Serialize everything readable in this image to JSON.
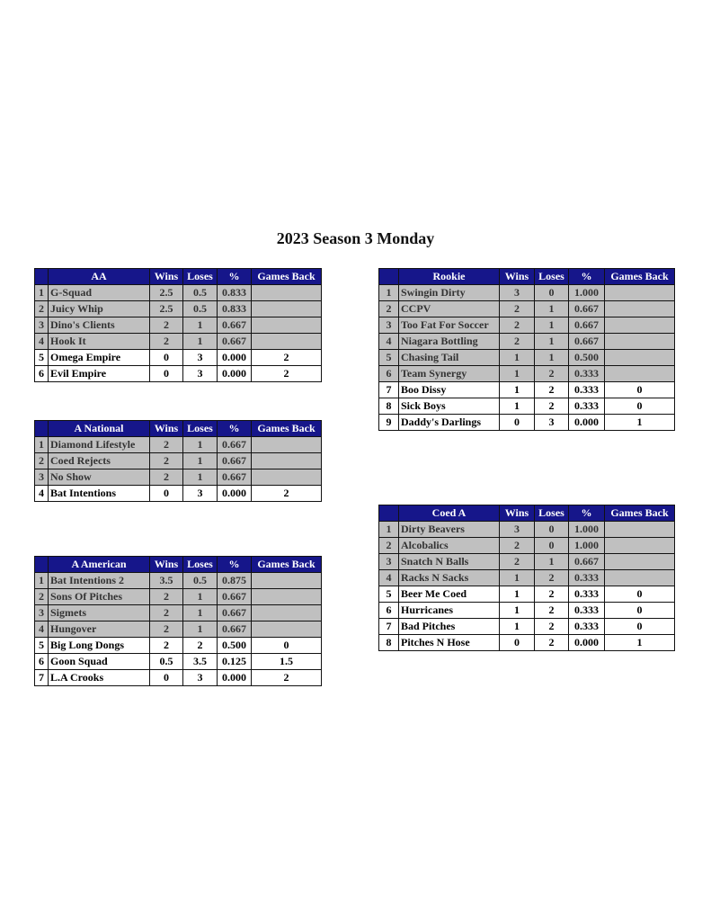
{
  "title": "2023 Season 3 Monday",
  "colors": {
    "header_bg": "#16168a",
    "top_row_bg": "#c0c0c0"
  },
  "columns": [
    "Wins",
    "Loses",
    "%",
    "Games Back"
  ],
  "tables": [
    {
      "name": "AA",
      "rows": [
        [
          "1",
          "G-Squad",
          "2.5",
          "0.5",
          "0.833",
          ""
        ],
        [
          "2",
          "Juicy Whip",
          "2.5",
          "0.5",
          "0.833",
          ""
        ],
        [
          "3",
          "Dino's Clients",
          "2",
          "1",
          "0.667",
          ""
        ],
        [
          "4",
          "Hook It",
          "2",
          "1",
          "0.667",
          ""
        ],
        [
          "5",
          "Omega Empire",
          "0",
          "3",
          "0.000",
          "2"
        ],
        [
          "6",
          "Evil Empire",
          "0",
          "3",
          "0.000",
          "2"
        ]
      ],
      "top": 4
    },
    {
      "name": "A National",
      "rows": [
        [
          "1",
          "Diamond Lifestyle",
          "2",
          "1",
          "0.667",
          ""
        ],
        [
          "2",
          "Coed Rejects",
          "2",
          "1",
          "0.667",
          ""
        ],
        [
          "3",
          "No Show",
          "2",
          "1",
          "0.667",
          ""
        ],
        [
          "4",
          "Bat Intentions",
          "0",
          "3",
          "0.000",
          "2"
        ]
      ],
      "top": 3
    },
    {
      "name": "A American",
      "rows": [
        [
          "1",
          "Bat Intentions 2",
          "3.5",
          "0.5",
          "0.875",
          ""
        ],
        [
          "2",
          "Sons Of Pitches",
          "2",
          "1",
          "0.667",
          ""
        ],
        [
          "3",
          "Sigmets",
          "2",
          "1",
          "0.667",
          ""
        ],
        [
          "4",
          "Hungover",
          "2",
          "1",
          "0.667",
          ""
        ],
        [
          "5",
          "Big Long Dongs",
          "2",
          "2",
          "0.500",
          "0"
        ],
        [
          "6",
          "Goon Squad",
          "0.5",
          "3.5",
          "0.125",
          "1.5"
        ],
        [
          "7",
          "L.A Crooks",
          "0",
          "3",
          "0.000",
          "2"
        ]
      ],
      "top": 4
    },
    {
      "name": "Rookie",
      "rows": [
        [
          "1",
          "Swingin Dirty",
          "3",
          "0",
          "1.000",
          ""
        ],
        [
          "2",
          "CCPV",
          "2",
          "1",
          "0.667",
          ""
        ],
        [
          "3",
          "Too Fat For Soccer",
          "2",
          "1",
          "0.667",
          ""
        ],
        [
          "4",
          "Niagara Bottling",
          "2",
          "1",
          "0.667",
          ""
        ],
        [
          "5",
          "Chasing Tail",
          "1",
          "1",
          "0.500",
          ""
        ],
        [
          "6",
          "Team Synergy",
          "1",
          "2",
          "0.333",
          ""
        ],
        [
          "7",
          "Boo Dissy",
          "1",
          "2",
          "0.333",
          "0"
        ],
        [
          "8",
          "Sick Boys",
          "1",
          "2",
          "0.333",
          "0"
        ],
        [
          "9",
          "Daddy's Darlings",
          "0",
          "3",
          "0.000",
          "1"
        ]
      ],
      "top": 6
    },
    {
      "name": "Coed A",
      "rows": [
        [
          "1",
          "Dirty Beavers",
          "3",
          "0",
          "1.000",
          ""
        ],
        [
          "2",
          "Alcobalics",
          "2",
          "0",
          "1.000",
          ""
        ],
        [
          "3",
          "Snatch N Balls",
          "2",
          "1",
          "0.667",
          ""
        ],
        [
          "4",
          "Racks N Sacks",
          "1",
          "2",
          "0.333",
          ""
        ],
        [
          "5",
          "Beer Me Coed",
          "1",
          "2",
          "0.333",
          "0"
        ],
        [
          "6",
          "Hurricanes",
          "1",
          "2",
          "0.333",
          "0"
        ],
        [
          "7",
          "Bad Pitches",
          "1",
          "2",
          "0.333",
          "0"
        ],
        [
          "8",
          "Pitches N Hose",
          "0",
          "2",
          "0.000",
          "1"
        ]
      ],
      "top": 4
    }
  ]
}
